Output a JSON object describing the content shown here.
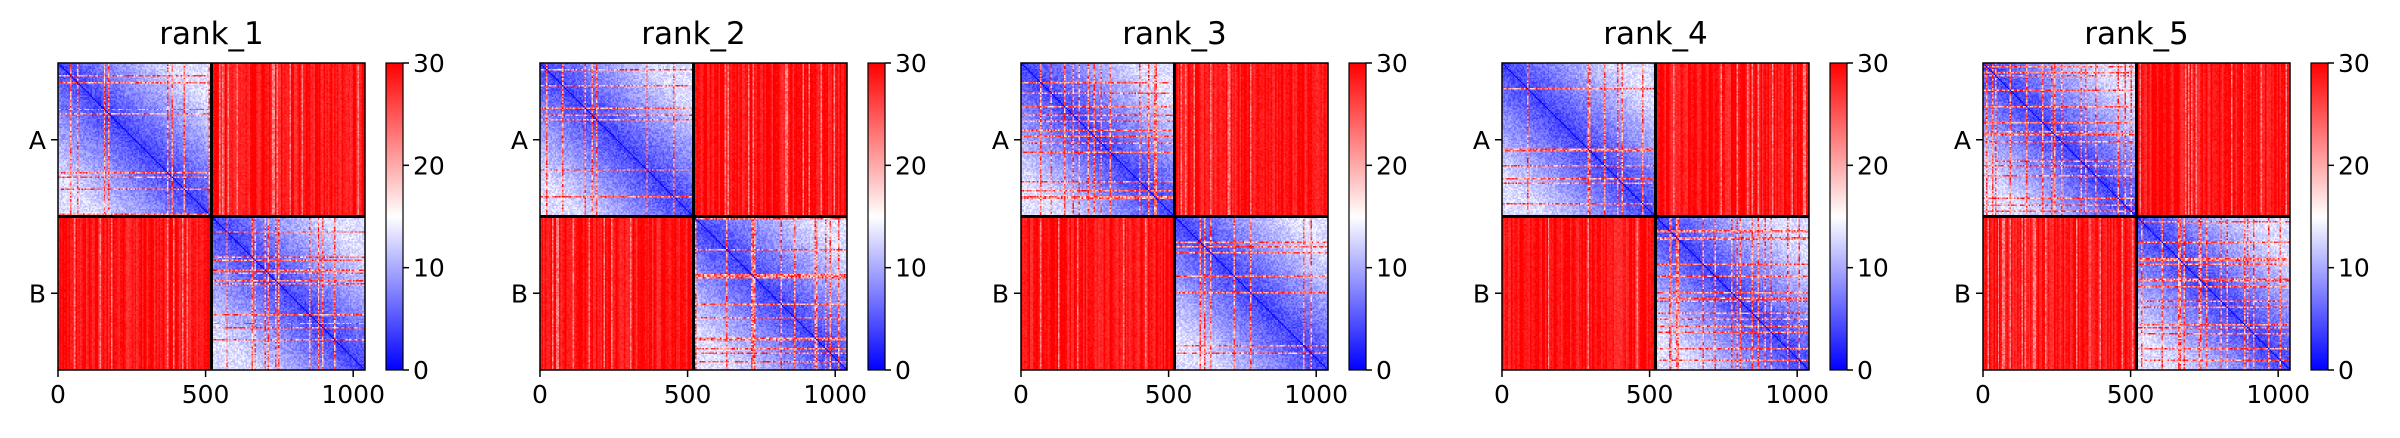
{
  "chart_data": [
    {
      "type": "heatmap",
      "title": "rank_1",
      "x_ticks": [
        0,
        500,
        1000
      ],
      "xlim": [
        0,
        1040
      ],
      "y_tick_labels": [
        "A",
        "B"
      ],
      "chain_boundary": 520,
      "blocks": {
        "A-A": "low (blue) with red/white stripes",
        "A-B": "high (red)",
        "B-A": "high (red)",
        "B-B": "low (blue) with red/white stripes"
      },
      "diagonal_value": 0,
      "colorbar": {
        "ticks": [
          0,
          10,
          20,
          30
        ],
        "range": [
          0,
          30
        ],
        "colormap": [
          "#0000ff",
          "#ffffff",
          "#ff0000"
        ]
      }
    },
    {
      "type": "heatmap",
      "title": "rank_2",
      "x_ticks": [
        0,
        500,
        1000
      ],
      "xlim": [
        0,
        1040
      ],
      "y_tick_labels": [
        "A",
        "B"
      ],
      "chain_boundary": 520,
      "blocks": {
        "A-A": "low (blue) with red/white stripes",
        "A-B": "high (red)",
        "B-A": "high (red)",
        "B-B": "low (blue) with red/white stripes"
      },
      "diagonal_value": 0,
      "colorbar": {
        "ticks": [
          0,
          10,
          20,
          30
        ],
        "range": [
          0,
          30
        ],
        "colormap": [
          "#0000ff",
          "#ffffff",
          "#ff0000"
        ]
      }
    },
    {
      "type": "heatmap",
      "title": "rank_3",
      "x_ticks": [
        0,
        500,
        1000
      ],
      "xlim": [
        0,
        1040
      ],
      "y_tick_labels": [
        "A",
        "B"
      ],
      "chain_boundary": 520,
      "blocks": {
        "A-A": "low (blue) with red/white stripes",
        "A-B": "high (red)",
        "B-A": "high (red)",
        "B-B": "low (blue) with red/white stripes"
      },
      "diagonal_value": 0,
      "colorbar": {
        "ticks": [
          0,
          10,
          20,
          30
        ],
        "range": [
          0,
          30
        ],
        "colormap": [
          "#0000ff",
          "#ffffff",
          "#ff0000"
        ]
      }
    },
    {
      "type": "heatmap",
      "title": "rank_4",
      "x_ticks": [
        0,
        500,
        1000
      ],
      "xlim": [
        0,
        1040
      ],
      "y_tick_labels": [
        "A",
        "B"
      ],
      "chain_boundary": 520,
      "blocks": {
        "A-A": "low (blue) with red/white stripes",
        "A-B": "high (red)",
        "B-A": "high (red)",
        "B-B": "low (blue) with red/white stripes"
      },
      "diagonal_value": 0,
      "colorbar": {
        "ticks": [
          0,
          10,
          20,
          30
        ],
        "range": [
          0,
          30
        ],
        "colormap": [
          "#0000ff",
          "#ffffff",
          "#ff0000"
        ]
      }
    },
    {
      "type": "heatmap",
      "title": "rank_5",
      "x_ticks": [
        0,
        500,
        1000
      ],
      "xlim": [
        0,
        1040
      ],
      "y_tick_labels": [
        "A",
        "B"
      ],
      "chain_boundary": 520,
      "blocks": {
        "A-A": "low (blue) with red/white stripes",
        "A-B": "high (red)",
        "B-A": "high (red)",
        "B-B": "low (blue) with red/white stripes"
      },
      "diagonal_value": 0,
      "colorbar": {
        "ticks": [
          0,
          10,
          20,
          30
        ],
        "range": [
          0,
          30
        ],
        "colormap": [
          "#0000ff",
          "#ffffff",
          "#ff0000"
        ]
      }
    }
  ]
}
